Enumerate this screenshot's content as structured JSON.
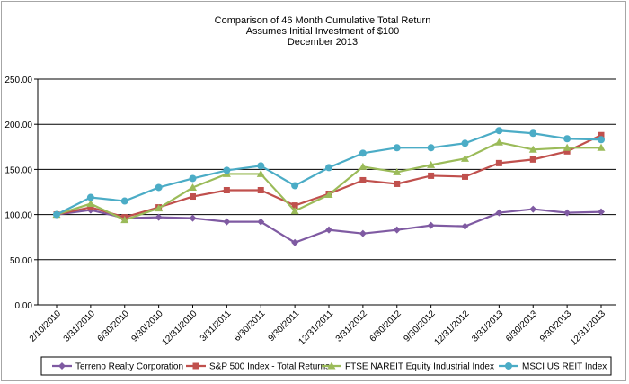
{
  "chart_data": {
    "type": "line",
    "title": [
      "Comparison of 46 Month Cumulative Total Return",
      "Assumes Initial Investment of $100",
      "December 2013"
    ],
    "xlabel": "",
    "ylabel": "",
    "ylim": [
      0,
      250
    ],
    "yticks": [
      "0.00",
      "50.00",
      "100.00",
      "150.00",
      "200.00",
      "250.00"
    ],
    "ytick_values": [
      0,
      50,
      100,
      150,
      200,
      250
    ],
    "grid": true,
    "legend_position": "bottom",
    "categories": [
      "2/10/2010",
      "3/31/2010",
      "6/30/2010",
      "9/30/2010",
      "12/31/2010",
      "3/31/2011",
      "6/30/2011",
      "9/30/2011",
      "12/31/2011",
      "3/31/2012",
      "6/30/2012",
      "9/30/2012",
      "12/31/2012",
      "3/31/2013",
      "6/30/2013",
      "9/30/2013",
      "12/31/2013"
    ],
    "series": [
      {
        "name": "Terreno Realty Corporation",
        "color": "#7f5aa2",
        "marker": "diamond",
        "values": [
          100,
          105,
          96,
          97,
          96,
          92,
          92,
          69,
          83,
          79,
          83,
          88,
          87,
          102,
          106,
          102,
          103
        ]
      },
      {
        "name": "S&P 500 Index - Total Returns",
        "color": "#c0504d",
        "marker": "square",
        "values": [
          100,
          108,
          97,
          108,
          120,
          127,
          127,
          110,
          123,
          138,
          134,
          143,
          142,
          157,
          161,
          170,
          188
        ]
      },
      {
        "name": "FTSE NAREIT Equity Industrial Index",
        "color": "#9bbb59",
        "marker": "triangle",
        "values": [
          100,
          112,
          94,
          107,
          130,
          145,
          145,
          104,
          122,
          153,
          147,
          155,
          162,
          180,
          172,
          174,
          174
        ]
      },
      {
        "name": "MSCI US REIT Index",
        "color": "#4bacc6",
        "marker": "circle",
        "values": [
          100,
          119,
          115,
          130,
          140,
          149,
          154,
          132,
          152,
          168,
          174,
          174,
          179,
          193,
          190,
          184,
          183
        ]
      }
    ]
  }
}
